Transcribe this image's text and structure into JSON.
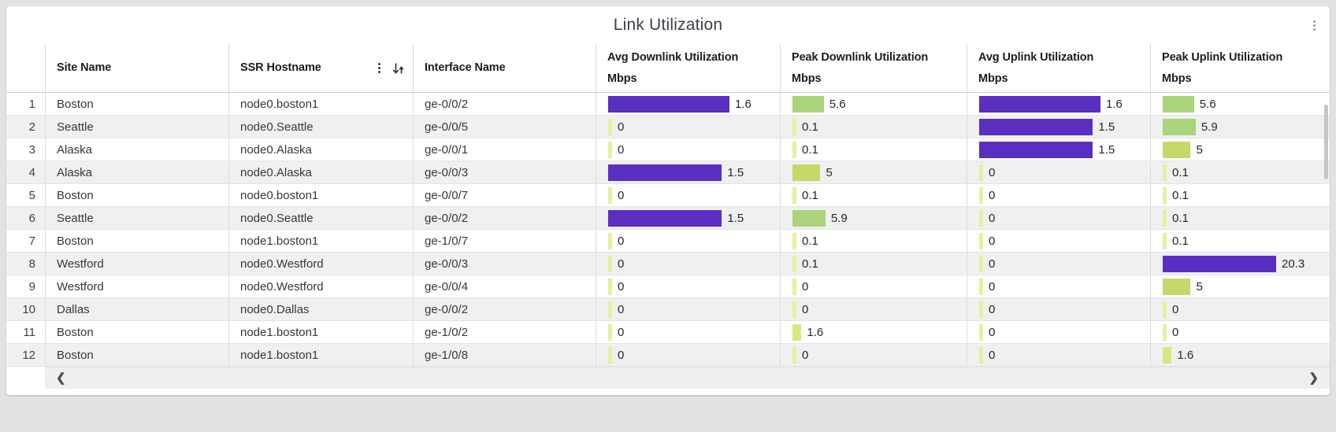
{
  "card": {
    "title": "Link Utilization"
  },
  "table": {
    "columns": {
      "site": "Site Name",
      "hostname": "SSR Hostname",
      "interface": "Interface Name",
      "bars": [
        {
          "title": "Avg Downlink Utilization",
          "unit": "Mbps",
          "key": "avg_down",
          "group": "avg"
        },
        {
          "title": "Peak Downlink Utilization",
          "unit": "Mbps",
          "key": "peak_down",
          "group": "peak"
        },
        {
          "title": "Avg Uplink Utilization",
          "unit": "Mbps",
          "key": "avg_up",
          "group": "avg"
        },
        {
          "title": "Peak Uplink Utilization",
          "unit": "Mbps",
          "key": "peak_up",
          "group": "peak"
        }
      ]
    },
    "rows": [
      {
        "num": 1,
        "site": "Boston",
        "hostname": "node0.boston1",
        "interface": "ge-0/0/2",
        "avg_down": 1.6,
        "peak_down": 5.6,
        "avg_up": 1.6,
        "peak_up": 5.6
      },
      {
        "num": 2,
        "site": "Seattle",
        "hostname": "node0.Seattle",
        "interface": "ge-0/0/5",
        "avg_down": 0,
        "peak_down": 0.1,
        "avg_up": 1.5,
        "peak_up": 5.9
      },
      {
        "num": 3,
        "site": "Alaska",
        "hostname": "node0.Alaska",
        "interface": "ge-0/0/1",
        "avg_down": 0,
        "peak_down": 0.1,
        "avg_up": 1.5,
        "peak_up": 5
      },
      {
        "num": 4,
        "site": "Alaska",
        "hostname": "node0.Alaska",
        "interface": "ge-0/0/3",
        "avg_down": 1.5,
        "peak_down": 5,
        "avg_up": 0,
        "peak_up": 0.1
      },
      {
        "num": 5,
        "site": "Boston",
        "hostname": "node0.boston1",
        "interface": "ge-0/0/7",
        "avg_down": 0,
        "peak_down": 0.1,
        "avg_up": 0,
        "peak_up": 0.1
      },
      {
        "num": 6,
        "site": "Seattle",
        "hostname": "node0.Seattle",
        "interface": "ge-0/0/2",
        "avg_down": 1.5,
        "peak_down": 5.9,
        "avg_up": 0,
        "peak_up": 0.1
      },
      {
        "num": 7,
        "site": "Boston",
        "hostname": "node1.boston1",
        "interface": "ge-1/0/7",
        "avg_down": 0,
        "peak_down": 0.1,
        "avg_up": 0,
        "peak_up": 0.1
      },
      {
        "num": 8,
        "site": "Westford",
        "hostname": "node0.Westford",
        "interface": "ge-0/0/3",
        "avg_down": 0,
        "peak_down": 0.1,
        "avg_up": 0,
        "peak_up": 20.3
      },
      {
        "num": 9,
        "site": "Westford",
        "hostname": "node0.Westford",
        "interface": "ge-0/0/4",
        "avg_down": 0,
        "peak_down": 0,
        "avg_up": 0,
        "peak_up": 5
      },
      {
        "num": 10,
        "site": "Dallas",
        "hostname": "node0.Dallas",
        "interface": "ge-0/0/2",
        "avg_down": 0,
        "peak_down": 0,
        "avg_up": 0,
        "peak_up": 0
      },
      {
        "num": 11,
        "site": "Boston",
        "hostname": "node1.boston1",
        "interface": "ge-1/0/2",
        "avg_down": 0,
        "peak_down": 1.6,
        "avg_up": 0,
        "peak_up": 0
      },
      {
        "num": 12,
        "site": "Boston",
        "hostname": "node1.boston1",
        "interface": "ge-1/0/8",
        "avg_down": 0,
        "peak_down": 0,
        "avg_up": 0,
        "peak_up": 1.6
      }
    ]
  },
  "bar_colors": {
    "high": "#5a2ec1",
    "mid": "#a9d47c",
    "midlow": "#c5d96a",
    "low": "#d9e77d",
    "zero": "#e5f0a1"
  },
  "scroll": {
    "left_chevron": "❮",
    "right_chevron": "❯"
  },
  "chart_data": {
    "type": "table",
    "title": "Link Utilization",
    "columns": [
      "#",
      "Site Name",
      "SSR Hostname",
      "Interface Name",
      "Avg Downlink Utilization Mbps",
      "Peak Downlink Utilization Mbps",
      "Avg Uplink Utilization Mbps",
      "Peak Uplink Utilization Mbps"
    ],
    "rows": [
      [
        1,
        "Boston",
        "node0.boston1",
        "ge-0/0/2",
        1.6,
        5.6,
        1.6,
        5.6
      ],
      [
        2,
        "Seattle",
        "node0.Seattle",
        "ge-0/0/5",
        0,
        0.1,
        1.5,
        5.9
      ],
      [
        3,
        "Alaska",
        "node0.Alaska",
        "ge-0/0/1",
        0,
        0.1,
        1.5,
        5
      ],
      [
        4,
        "Alaska",
        "node0.Alaska",
        "ge-0/0/3",
        1.5,
        5,
        0,
        0.1
      ],
      [
        5,
        "Boston",
        "node0.boston1",
        "ge-0/0/7",
        0,
        0.1,
        0,
        0.1
      ],
      [
        6,
        "Seattle",
        "node0.Seattle",
        "ge-0/0/2",
        1.5,
        5.9,
        0,
        0.1
      ],
      [
        7,
        "Boston",
        "node1.boston1",
        "ge-1/0/7",
        0,
        0.1,
        0,
        0.1
      ],
      [
        8,
        "Westford",
        "node0.Westford",
        "ge-0/0/3",
        0,
        0.1,
        0,
        20.3
      ],
      [
        9,
        "Westford",
        "node0.Westford",
        "ge-0/0/4",
        0,
        0,
        0,
        5
      ],
      [
        10,
        "Dallas",
        "node0.Dallas",
        "ge-0/0/2",
        0,
        0,
        0,
        0
      ],
      [
        11,
        "Boston",
        "node1.boston1",
        "ge-1/0/2",
        0,
        1.6,
        0,
        0
      ],
      [
        12,
        "Boston",
        "node1.boston1",
        "ge-1/0/8",
        0,
        0,
        0,
        1.6
      ]
    ]
  }
}
